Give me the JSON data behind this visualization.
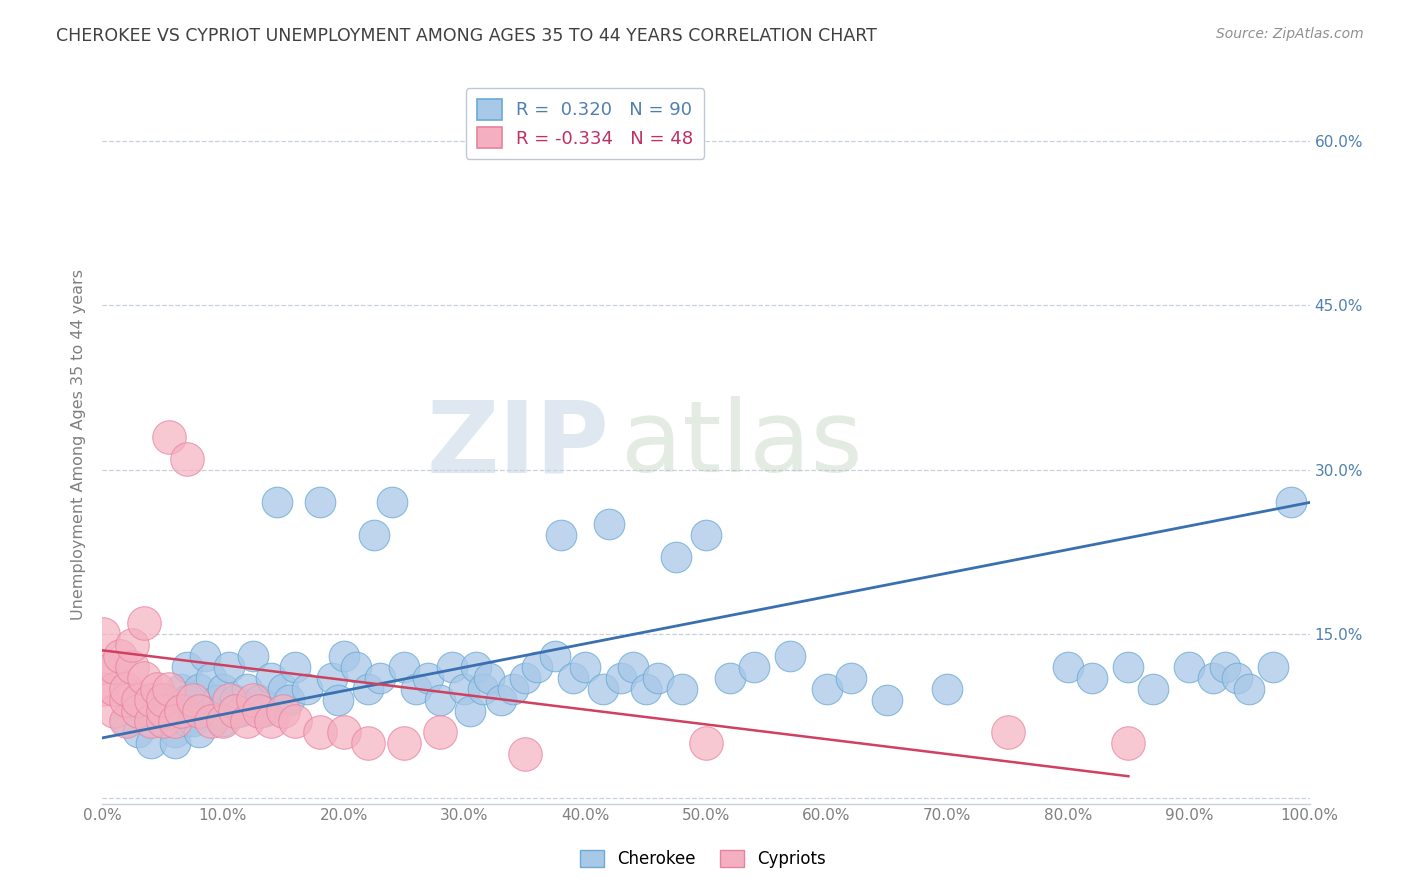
{
  "title": "CHEROKEE VS CYPRIOT UNEMPLOYMENT AMONG AGES 35 TO 44 YEARS CORRELATION CHART",
  "source": "Source: ZipAtlas.com",
  "ylabel": "Unemployment Among Ages 35 to 44 years",
  "xlim": [
    0,
    1.0
  ],
  "ylim": [
    -0.005,
    0.65
  ],
  "xticks": [
    0.0,
    0.1,
    0.2,
    0.3,
    0.4,
    0.5,
    0.6,
    0.7,
    0.8,
    0.9,
    1.0
  ],
  "xticklabels": [
    "0.0%",
    "10.0%",
    "20.0%",
    "30.0%",
    "40.0%",
    "50.0%",
    "60.0%",
    "70.0%",
    "80.0%",
    "90.0%",
    "100.0%"
  ],
  "yticks": [
    0.0,
    0.15,
    0.3,
    0.45,
    0.6
  ],
  "yticklabels_right": [
    "",
    "15.0%",
    "30.0%",
    "45.0%",
    "60.0%"
  ],
  "cherokee_fill": "#a8c8e8",
  "cherokee_edge": "#6aaad4",
  "cypriot_fill": "#f4b0c0",
  "cypriot_edge": "#e880a0",
  "cherokee_line_color": "#3a6fb0",
  "cypriot_line_color": "#d04060",
  "watermark_zip": "ZIP",
  "watermark_atlas": "atlas",
  "cherokee_x": [
    0.02,
    0.03,
    0.04,
    0.04,
    0.05,
    0.05,
    0.06,
    0.06,
    0.06,
    0.065,
    0.07,
    0.07,
    0.07,
    0.075,
    0.08,
    0.08,
    0.08,
    0.085,
    0.09,
    0.09,
    0.095,
    0.1,
    0.1,
    0.105,
    0.11,
    0.115,
    0.12,
    0.125,
    0.13,
    0.135,
    0.14,
    0.145,
    0.15,
    0.155,
    0.16,
    0.17,
    0.18,
    0.19,
    0.195,
    0.2,
    0.21,
    0.22,
    0.225,
    0.23,
    0.24,
    0.25,
    0.26,
    0.27,
    0.28,
    0.29,
    0.3,
    0.305,
    0.31,
    0.315,
    0.32,
    0.33,
    0.34,
    0.35,
    0.36,
    0.375,
    0.38,
    0.39,
    0.4,
    0.415,
    0.42,
    0.43,
    0.44,
    0.45,
    0.46,
    0.475,
    0.48,
    0.5,
    0.52,
    0.54,
    0.57,
    0.6,
    0.62,
    0.65,
    0.7,
    0.8,
    0.82,
    0.85,
    0.87,
    0.9,
    0.92,
    0.93,
    0.94,
    0.95,
    0.97,
    0.985
  ],
  "cherokee_y": [
    0.07,
    0.06,
    0.05,
    0.08,
    0.07,
    0.09,
    0.06,
    0.08,
    0.05,
    0.1,
    0.07,
    0.09,
    0.12,
    0.07,
    0.08,
    0.1,
    0.06,
    0.13,
    0.08,
    0.11,
    0.09,
    0.1,
    0.07,
    0.12,
    0.09,
    0.08,
    0.1,
    0.13,
    0.09,
    0.08,
    0.11,
    0.27,
    0.1,
    0.09,
    0.12,
    0.1,
    0.27,
    0.11,
    0.09,
    0.13,
    0.12,
    0.1,
    0.24,
    0.11,
    0.27,
    0.12,
    0.1,
    0.11,
    0.09,
    0.12,
    0.1,
    0.08,
    0.12,
    0.1,
    0.11,
    0.09,
    0.1,
    0.11,
    0.12,
    0.13,
    0.24,
    0.11,
    0.12,
    0.1,
    0.25,
    0.11,
    0.12,
    0.1,
    0.11,
    0.22,
    0.1,
    0.24,
    0.11,
    0.12,
    0.13,
    0.1,
    0.11,
    0.09,
    0.1,
    0.12,
    0.11,
    0.12,
    0.1,
    0.12,
    0.11,
    0.12,
    0.11,
    0.1,
    0.12,
    0.27
  ],
  "cypriot_x": [
    0.0,
    0.0,
    0.001,
    0.01,
    0.01,
    0.01,
    0.015,
    0.02,
    0.02,
    0.02,
    0.025,
    0.025,
    0.03,
    0.03,
    0.035,
    0.035,
    0.04,
    0.04,
    0.045,
    0.05,
    0.05,
    0.05,
    0.055,
    0.055,
    0.06,
    0.065,
    0.07,
    0.075,
    0.08,
    0.09,
    0.1,
    0.105,
    0.11,
    0.12,
    0.125,
    0.13,
    0.14,
    0.15,
    0.16,
    0.18,
    0.2,
    0.22,
    0.25,
    0.28,
    0.35,
    0.5,
    0.75,
    0.85
  ],
  "cypriot_y": [
    0.1,
    0.12,
    0.15,
    0.08,
    0.1,
    0.12,
    0.13,
    0.07,
    0.09,
    0.1,
    0.12,
    0.14,
    0.08,
    0.09,
    0.11,
    0.16,
    0.07,
    0.09,
    0.1,
    0.07,
    0.08,
    0.09,
    0.1,
    0.33,
    0.07,
    0.08,
    0.31,
    0.09,
    0.08,
    0.07,
    0.07,
    0.09,
    0.08,
    0.07,
    0.09,
    0.08,
    0.07,
    0.08,
    0.07,
    0.06,
    0.06,
    0.05,
    0.05,
    0.06,
    0.04,
    0.05,
    0.06,
    0.05
  ],
  "cherokee_trend_x": [
    0.0,
    1.0
  ],
  "cherokee_trend_y": [
    0.055,
    0.27
  ],
  "cypriot_trend_x": [
    0.0,
    0.85
  ],
  "cypriot_trend_y": [
    0.135,
    0.02
  ],
  "background_color": "#ffffff",
  "grid_color": "#c8d0dc",
  "title_color": "#404040",
  "axis_tick_color": "#808080",
  "right_tick_color": "#5080b0",
  "marker_size": 18
}
